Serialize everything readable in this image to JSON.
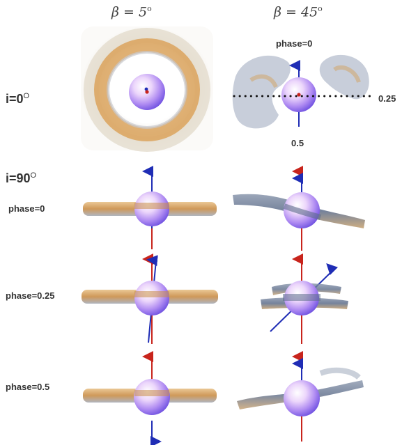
{
  "columns": [
    {
      "symbol": "β = 5",
      "unit": "o"
    },
    {
      "symbol": "β = 45",
      "unit": "o"
    }
  ],
  "inclinations": [
    {
      "label": "i=0",
      "unit": "O"
    },
    {
      "label": "i=90",
      "unit": "O"
    }
  ],
  "phase_rows": [
    "phase=0",
    "phase=0.25",
    "phase=0.5"
  ],
  "top_right_annotations": {
    "phase_top": "phase=0",
    "phase_right": "0.25",
    "phase_bottom": "0.5"
  },
  "colors": {
    "disk_orange": "#d9a25c",
    "disk_gray": "#6b7a94",
    "star_purple": "#a98cf0",
    "spin_axis": "#1f2db5",
    "magnetic_axis": "#c8241c"
  }
}
